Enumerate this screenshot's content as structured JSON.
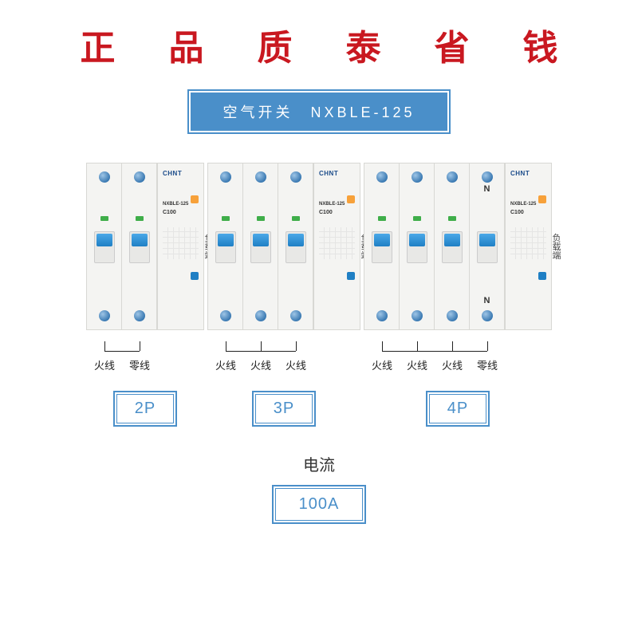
{
  "headline": {
    "segment1": "正 品 质",
    "segment2": "泰 省 钱",
    "color1": "#c91820",
    "color2": "#c91820",
    "fontsize": 44
  },
  "product_box": {
    "text": "空气开关　NXBLE-125",
    "border_color": "#4a8fc9",
    "bg_color": "#4a8fc9",
    "text_color": "#ffffff"
  },
  "breaker_common": {
    "brand": "CHNT",
    "model": "NXBLE-125",
    "rating": "C100",
    "side_label": "负载端",
    "body_color": "#f4f4f2",
    "lever_color": "#1f7fc4",
    "screw_color": "#3a79b2",
    "test_btn_color": "#f7a13a",
    "indicator_color": "#3fae4a"
  },
  "breakers": [
    {
      "id": "2p",
      "pole_label": "2P",
      "poles": 2,
      "n_marker": false,
      "terminals": [
        "火线",
        "零线"
      ]
    },
    {
      "id": "3p",
      "pole_label": "3P",
      "poles": 3,
      "n_marker": false,
      "terminals": [
        "火线",
        "火线",
        "火线"
      ]
    },
    {
      "id": "4p",
      "pole_label": "4P",
      "poles": 4,
      "n_marker": true,
      "n_text": "N",
      "terminals": [
        "火线",
        "火线",
        "火线",
        "零线"
      ]
    }
  ],
  "current": {
    "label": "电流",
    "value": "100A",
    "border_color": "#4a8fc9",
    "text_color": "#4a8fc9"
  },
  "colors": {
    "background": "#ffffff",
    "text_dark": "#222222"
  }
}
